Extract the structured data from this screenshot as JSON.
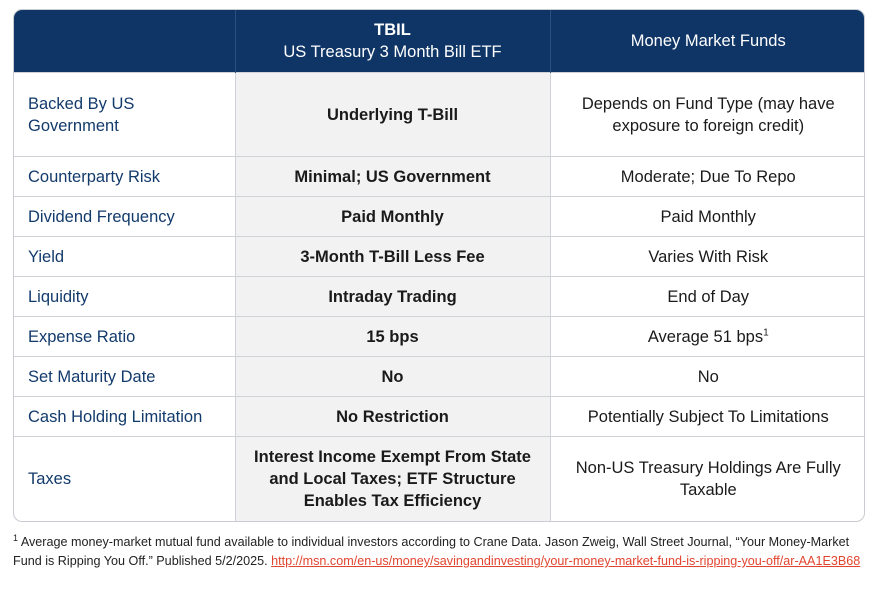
{
  "header": {
    "tbil_ticker": "TBIL",
    "tbil_name": "US Treasury 3 Month Bill ETF",
    "mmf_title": "Money Market Funds"
  },
  "rows": [
    {
      "label": "Backed By US Government",
      "tbil": "Underlying T-Bill",
      "mmf": "Depends on Fund Type (may have exposure to foreign credit)"
    },
    {
      "label": "Counterparty Risk",
      "tbil": "Minimal; US Government",
      "mmf": "Moderate; Due To Repo"
    },
    {
      "label": "Dividend Frequency",
      "tbil": "Paid Monthly",
      "mmf": "Paid Monthly"
    },
    {
      "label": "Yield",
      "tbil": "3-Month T-Bill Less Fee",
      "mmf": "Varies With Risk"
    },
    {
      "label": "Liquidity",
      "tbil": "Intraday Trading",
      "mmf": "End of Day"
    },
    {
      "label": "Expense Ratio",
      "tbil": "15 bps",
      "mmf": "Average 51 bps",
      "mmf_sup": "1"
    },
    {
      "label": "Set Maturity Date",
      "tbil": "No",
      "mmf": "No"
    },
    {
      "label": "Cash Holding Limitation",
      "tbil": "No Restriction",
      "mmf": "Potentially Subject To Limitations"
    },
    {
      "label": "Taxes",
      "tbil": "Interest Income Exempt From State and Local Taxes; ETF Structure Enables Tax Efficiency",
      "mmf": "Non-US Treasury Holdings Are Fully Taxable"
    }
  ],
  "footnote": {
    "marker": "1",
    "text": " Average money-market mutual fund available to individual investors according to Crane Data. Jason Zweig, Wall Street Journal, “Your Money-Market Fund is Ripping You Off.” Published 5/2/2025. ",
    "link": "http://msn.com/en-us/money/savingandinvesting/your-money-market-fund-is-ripping-you-off/ar-AA1E3B68",
    "link_color": "#e2452f"
  },
  "colors": {
    "header_bg": "#0f3566",
    "label_text": "#123a6b",
    "tbil_column_bg": "#f2f2f2"
  }
}
